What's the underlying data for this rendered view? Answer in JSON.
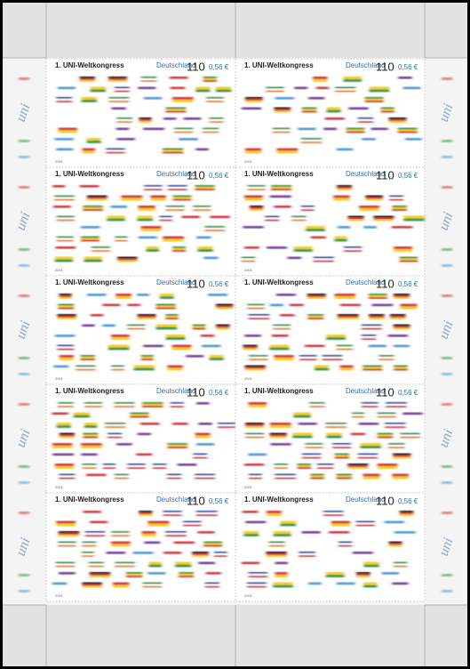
{
  "sheet": {
    "margin_text": "uni",
    "stamps": [
      {
        "title": "1. UNI-Weltkongress",
        "country": "Deutschland",
        "value_dm": "110",
        "value_euro": "0,56 €",
        "year": "2001"
      },
      {
        "title": "1. UNI-Weltkongress",
        "country": "Deutschland",
        "value_dm": "110",
        "value_euro": "0,56 €",
        "year": "2001"
      },
      {
        "title": "1. UNI-Weltkongress",
        "country": "Deutschland",
        "value_dm": "110",
        "value_euro": "0,56 €",
        "year": "2001"
      },
      {
        "title": "1. UNI-Weltkongress",
        "country": "Deutschland",
        "value_dm": "110",
        "value_euro": "0,56 €",
        "year": "2001"
      },
      {
        "title": "1. UNI-Weltkongress",
        "country": "Deutschland",
        "value_dm": "110",
        "value_euro": "0,56 €",
        "year": "2001"
      },
      {
        "title": "1. UNI-Weltkongress",
        "country": "Deutschland",
        "value_dm": "110",
        "value_euro": "0,56 €",
        "year": "2001"
      },
      {
        "title": "1. UNI-Weltkongress",
        "country": "Deutschland",
        "value_dm": "110",
        "value_euro": "0,56 €",
        "year": "2001"
      },
      {
        "title": "1. UNI-Weltkongress",
        "country": "Deutschland",
        "value_dm": "110",
        "value_euro": "0,56 €",
        "year": "2001"
      },
      {
        "title": "1. UNI-Weltkongress",
        "country": "Deutschland",
        "value_dm": "110",
        "value_euro": "0,56 €",
        "year": "2001"
      },
      {
        "title": "1. UNI-Weltkongress",
        "country": "Deutschland",
        "value_dm": "110",
        "value_euro": "0,56 €",
        "year": "2001"
      }
    ]
  }
}
